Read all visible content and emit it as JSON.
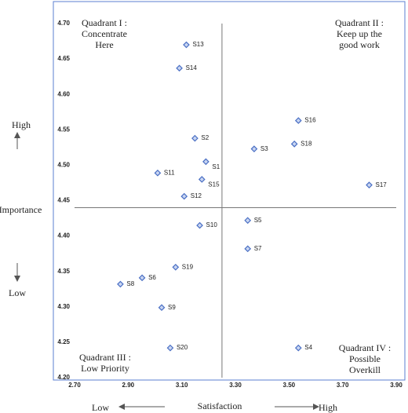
{
  "chart_data": {
    "type": "scatter",
    "x_label": "Satisfaction",
    "y_label": "Importance",
    "x_low": "Low",
    "x_high": "High",
    "y_high": "High",
    "y_low": "Low",
    "quadrants": [
      [
        "Quadrant I :",
        "Concentrate",
        "Here"
      ],
      [
        "Quadrant II :",
        "Keep up the",
        "good work"
      ],
      [
        "Quadrant III :",
        "Low Priority"
      ],
      [
        "Quadrant IV :",
        "Possible",
        "Overkill"
      ]
    ],
    "labels": [
      "S1",
      "S2",
      "S3",
      "S4",
      "S5",
      "S6",
      "S7",
      "S8",
      "S9",
      "S10",
      "S11",
      "S12",
      "S13",
      "S14",
      "S15",
      "S16",
      "S17",
      "S18",
      "S19",
      "S20"
    ],
    "x": [
      3.19,
      3.149,
      3.37,
      3.535,
      3.346,
      2.952,
      3.346,
      2.871,
      3.025,
      3.167,
      3.01,
      3.109,
      3.117,
      3.091,
      3.175,
      3.535,
      3.799,
      3.52,
      3.077,
      3.057
    ],
    "values": [
      4.505,
      4.538,
      4.523,
      4.242,
      4.422,
      4.341,
      4.382,
      4.332,
      4.299,
      4.415,
      4.489,
      4.456,
      4.67,
      4.637,
      4.48,
      4.563,
      4.472,
      4.53,
      4.356,
      4.242
    ],
    "color": "#4a6fc4",
    "x_divider": 3.25,
    "y_divider": 4.44,
    "xlim": [
      2.7,
      3.9
    ],
    "ylim": [
      4.2,
      4.7
    ],
    "xticks": [
      {
        "value": 2.7,
        "label": "2.70"
      },
      {
        "value": 2.9,
        "label": "2.90"
      },
      {
        "value": 3.1,
        "label": "3.10"
      },
      {
        "value": 3.3,
        "label": "3.30"
      },
      {
        "value": 3.5,
        "label": "3.50"
      },
      {
        "value": 3.7,
        "label": "3.70"
      },
      {
        "value": 3.9,
        "label": "3.90"
      }
    ],
    "yticks": [
      {
        "value": 4.2,
        "label": "4.20"
      },
      4.25,
      {
        "value": 4.3,
        "label": "4.30"
      },
      4.35,
      {
        "value": 4.4,
        "label": "4.40"
      },
      4.45,
      {
        "value": 4.5,
        "label": "4.50"
      },
      4.55,
      {
        "value": 4.6,
        "label": "4.60"
      },
      4.65,
      {
        "value": 4.7,
        "label": "4.70"
      }
    ]
  }
}
